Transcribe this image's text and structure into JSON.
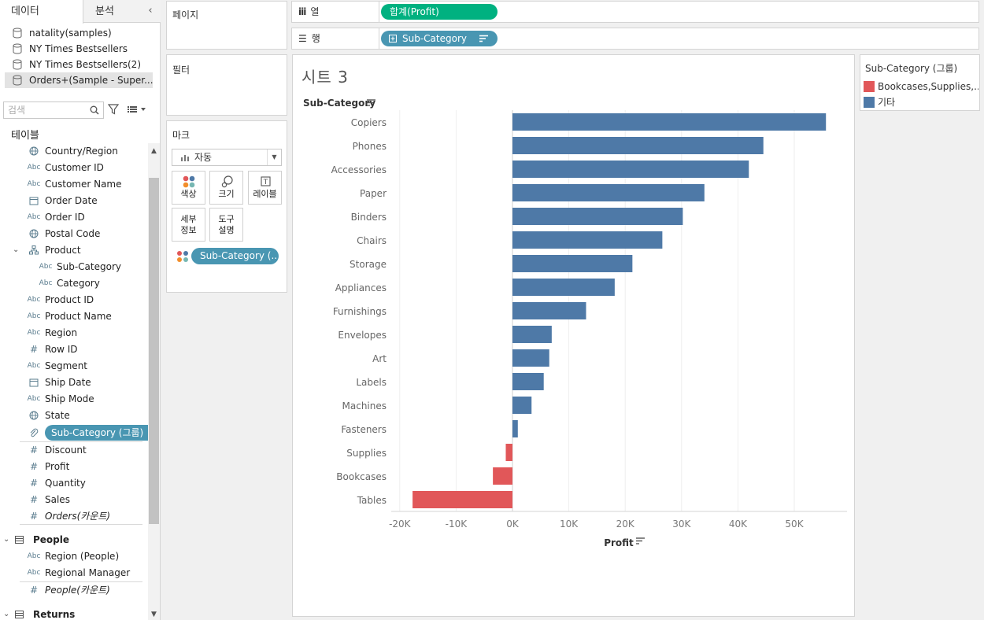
{
  "tabs": {
    "data": "데이터",
    "analysis": "분석"
  },
  "datasources": [
    {
      "label": "natality(samples)"
    },
    {
      "label": "NY Times Bestsellers"
    },
    {
      "label": "NY Times Bestsellers(2)"
    },
    {
      "label": "Orders+(Sample - Super..."
    }
  ],
  "search": {
    "placeholder": "검색"
  },
  "tables_header": "테이블",
  "fields": [
    {
      "label": "Country/Region",
      "icon": "globe-icon"
    },
    {
      "label": "Customer ID",
      "icon": "Abc"
    },
    {
      "label": "Customer Name",
      "icon": "Abc"
    },
    {
      "label": "Order Date",
      "icon": "calendar-icon"
    },
    {
      "label": "Order ID",
      "icon": "Abc"
    },
    {
      "label": "Postal Code",
      "icon": "globe-icon"
    },
    {
      "label": "Product",
      "icon": "hierarchy-icon"
    },
    {
      "label": "Sub-Category",
      "icon": "Abc"
    },
    {
      "label": "Category",
      "icon": "Abc"
    },
    {
      "label": "Product ID",
      "icon": "Abc"
    },
    {
      "label": "Product Name",
      "icon": "Abc"
    },
    {
      "label": "Region",
      "icon": "Abc"
    },
    {
      "label": "Row ID",
      "icon": "#"
    },
    {
      "label": "Segment",
      "icon": "Abc"
    },
    {
      "label": "Ship Date",
      "icon": "calendar-icon"
    },
    {
      "label": "Ship Mode",
      "icon": "Abc"
    },
    {
      "label": "State",
      "icon": "globe-icon"
    },
    {
      "label": "Sub-Category (그룹)",
      "icon": "paperclip-icon"
    },
    {
      "label": "Discount",
      "icon": "#"
    },
    {
      "label": "Profit",
      "icon": "#"
    },
    {
      "label": "Quantity",
      "icon": "#"
    },
    {
      "label": "Sales",
      "icon": "#"
    },
    {
      "label": "Orders(카운트)",
      "icon": "#"
    }
  ],
  "people_header": "People",
  "people_fields": [
    {
      "label": "Region (People)",
      "icon": "Abc"
    },
    {
      "label": "Regional Manager",
      "icon": "Abc"
    },
    {
      "label": "People(카운트)",
      "icon": "#"
    }
  ],
  "returns_header": "Returns",
  "shelves": {
    "pages": "페이지",
    "filters": "필터",
    "marks": "마크",
    "marks_type": "자동",
    "color": "색상",
    "size": "크기",
    "label": "레이블",
    "detail_1": "세부",
    "detail_2": "정보",
    "tooltip_1": "도구",
    "tooltip_2": "설명",
    "marks_pill": "Sub-Category (..",
    "columns_label": "열",
    "rows_label": "행",
    "columns_pill": "합계(Profit)",
    "rows_pill": "Sub-Category"
  },
  "sheet_title": "시트 3",
  "legend": {
    "title": "Sub-Category (그룹)",
    "items": [
      {
        "label": "Bookcases,Supplies,...",
        "color": "#e15759"
      },
      {
        "label": "기타",
        "color": "#4e79a7"
      }
    ]
  },
  "chart_data": {
    "type": "bar",
    "orientation": "horizontal",
    "title": "시트 3",
    "ylabel": "Sub-Category",
    "xlabel": "Profit",
    "categories": [
      "Copiers",
      "Phones",
      "Accessories",
      "Paper",
      "Binders",
      "Chairs",
      "Storage",
      "Appliances",
      "Furnishings",
      "Envelopes",
      "Art",
      "Labels",
      "Machines",
      "Fasteners",
      "Supplies",
      "Bookcases",
      "Tables"
    ],
    "values": [
      55618,
      44516,
      41937,
      34054,
      30222,
      26590,
      21279,
      18138,
      13059,
      6964,
      6528,
      5546,
      3385,
      950,
      -1189,
      -3473,
      -17725
    ],
    "groups": [
      "기타",
      "기타",
      "기타",
      "기타",
      "기타",
      "기타",
      "기타",
      "기타",
      "기타",
      "기타",
      "기타",
      "기타",
      "기타",
      "기타",
      "Bookcases,Supplies,...",
      "Bookcases,Supplies,...",
      "Bookcases,Supplies,..."
    ],
    "group_colors": {
      "기타": "#4e79a7",
      "Bookcases,Supplies,...": "#e15759"
    },
    "xlim": [
      -20000,
      60000
    ],
    "xticks": [
      -20000,
      -10000,
      0,
      10000,
      20000,
      30000,
      40000,
      50000
    ],
    "xtick_labels": [
      "-20K",
      "-10K",
      "0K",
      "10K",
      "20K",
      "30K",
      "40K",
      "50K"
    ],
    "grid": true
  }
}
